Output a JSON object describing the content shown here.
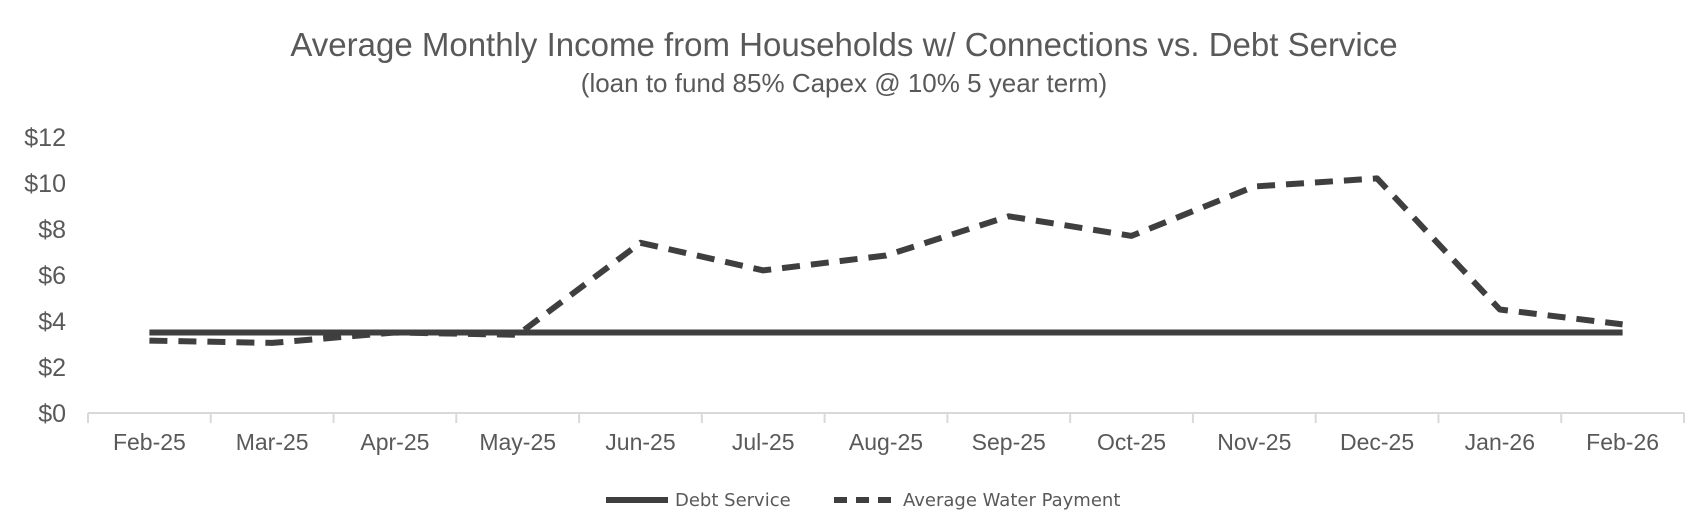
{
  "chart_data": {
    "type": "line",
    "title": "Average Monthly Income from Households w/ Connections vs. Debt Service",
    "subtitle": "(loan to fund 85% Capex @ 10% 5 year term)",
    "xlabel": "",
    "ylabel": "",
    "categories": [
      "Feb-25",
      "Mar-25",
      "Apr-25",
      "May-25",
      "Jun-25",
      "Jul-25",
      "Aug-25",
      "Sep-25",
      "Oct-25",
      "Nov-25",
      "Dec-25",
      "Jan-26",
      "Feb-26"
    ],
    "ylim": [
      0,
      12
    ],
    "yticks": [
      0,
      2,
      4,
      6,
      8,
      10,
      12
    ],
    "ytick_labels": [
      "$0",
      "$2",
      "$4",
      "$6",
      "$8",
      "$10",
      "$12"
    ],
    "grid": false,
    "legend_position": "bottom",
    "series": [
      {
        "name": "Debt Service",
        "style": "solid",
        "color": "#3f3f3f",
        "values": [
          3.5,
          3.5,
          3.5,
          3.5,
          3.5,
          3.5,
          3.5,
          3.5,
          3.5,
          3.5,
          3.5,
          3.5,
          3.5
        ]
      },
      {
        "name": "Average Water Payment",
        "style": "dashed",
        "color": "#3f3f3f",
        "values": [
          3.15,
          3.05,
          3.5,
          3.4,
          7.4,
          6.2,
          6.85,
          8.55,
          7.7,
          9.85,
          10.2,
          4.5,
          3.85
        ]
      }
    ],
    "axis_color": "#d9d9d9",
    "text_color": "#595959"
  }
}
